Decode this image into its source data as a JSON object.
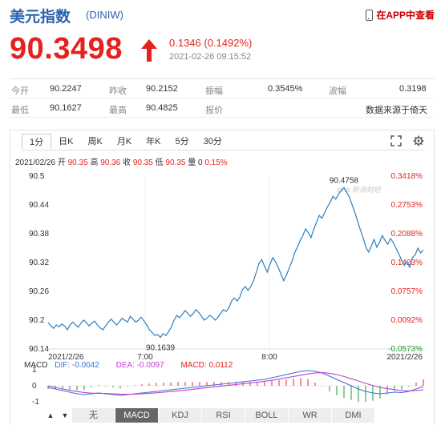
{
  "header": {
    "title": "美元指数",
    "code": "(DINIW)",
    "app_link": "在APP中查看",
    "app_icon": "phone-icon"
  },
  "quote": {
    "price": "90.3498",
    "change": "0.1346 (0.1492%)",
    "time": "2021-02-26 09:15:52",
    "direction_icon": "arrow-up-icon",
    "up_color": "#e4231f"
  },
  "stats": {
    "row1": [
      {
        "label": "今开",
        "value": "90.2247"
      },
      {
        "label": "昨收",
        "value": "90.2152"
      },
      {
        "label": "振幅",
        "value": "0.3545%"
      },
      {
        "label": "波幅",
        "value": "0.3198"
      }
    ],
    "row2": [
      {
        "label": "最低",
        "value": "90.1627"
      },
      {
        "label": "最高",
        "value": "90.4825"
      },
      {
        "label": "报价",
        "value": "数据来源于倚天"
      }
    ]
  },
  "tabs": [
    "1分",
    "日K",
    "周K",
    "月K",
    "年K",
    "5分",
    "30分"
  ],
  "active_tab": "1分",
  "tools": [
    "expand-icon",
    "gear-icon"
  ],
  "ohlc": {
    "date": "2021/02/26",
    "open_label": "开",
    "open": "90.35",
    "high_label": "高",
    "high": "90.36",
    "close_label": "收",
    "close": "90.35",
    "low_label": "低",
    "low": "90.35",
    "volume_label": "量",
    "volume": "0",
    "pct": "0.15%"
  },
  "chart_data": {
    "type": "line",
    "y_ticks": [
      "90.5",
      "90.44",
      "90.38",
      "90.32",
      "90.26",
      "90.2",
      "90.14"
    ],
    "pct_ticks": [
      "0.3418%",
      "0.2753%",
      "0.2088%",
      "0.1423%",
      "0.0757%",
      "0.0092%",
      "-0.0573%"
    ],
    "ylim": [
      90.14,
      90.5
    ],
    "x_labels": [
      "2021/2/26",
      "7:00",
      "8:00",
      "2021/2/26"
    ],
    "high_annotation": "90.4758",
    "low_annotation": "90.1639",
    "watermark": "sina 新浪财经",
    "line_color": "#2a7fc1",
    "grid": true,
    "series": [
      {
        "values": [
          90.195,
          90.188,
          90.183,
          90.19,
          90.186,
          90.192,
          90.188,
          90.18,
          90.19,
          90.196,
          90.19,
          90.185,
          90.194,
          90.2,
          90.195,
          90.188,
          90.194,
          90.198,
          90.19,
          90.184,
          90.18,
          90.188,
          90.196,
          90.202,
          90.196,
          90.19,
          90.196,
          90.204,
          90.2,
          90.196,
          90.208,
          90.202,
          90.196,
          90.2,
          90.206,
          90.198,
          90.19,
          90.18,
          90.174,
          90.168,
          90.17,
          90.164,
          90.172,
          90.168,
          90.176,
          90.186,
          90.2,
          90.21,
          90.205,
          90.212,
          90.22,
          90.214,
          90.208,
          90.214,
          90.222,
          90.216,
          90.208,
          90.2,
          90.204,
          90.21,
          90.206,
          90.2,
          90.206,
          90.214,
          90.222,
          90.218,
          90.226,
          90.24,
          90.246,
          90.24,
          90.248,
          90.264,
          90.27,
          90.262,
          90.27,
          90.282,
          90.3,
          90.318,
          90.326,
          90.312,
          90.3,
          90.316,
          90.33,
          90.322,
          90.31,
          90.296,
          90.282,
          90.294,
          90.308,
          90.322,
          90.34,
          90.352,
          90.366,
          90.376,
          90.39,
          90.382,
          90.372,
          90.39,
          90.404,
          90.418,
          90.412,
          90.424,
          90.436,
          90.446,
          90.458,
          90.452,
          90.462,
          90.47,
          90.4758,
          90.466,
          90.456,
          90.44,
          90.424,
          90.406,
          90.388,
          90.372,
          90.352,
          90.342,
          90.354,
          90.368,
          90.352,
          90.362,
          90.376,
          90.366,
          90.358,
          90.37,
          90.362,
          90.35,
          90.338,
          90.326,
          90.314,
          90.322,
          90.31,
          90.33,
          90.336,
          90.35,
          90.34,
          90.346
        ]
      }
    ],
    "macd": {
      "label": "MACD",
      "dif": "DIF: -0.0042",
      "dea": "DEA: -0.0097",
      "macd": "MACD: 0.0112",
      "y_ticks": [
        "1",
        "0",
        "-1"
      ],
      "dif_color": "#3b6fd6",
      "dea_color": "#c33fcf",
      "dif_values": [
        -0.1,
        -0.2,
        -0.3,
        -0.4,
        -0.5,
        -0.55,
        -0.5,
        -0.45,
        -0.5,
        -0.55,
        -0.6,
        -0.55,
        -0.5,
        -0.45,
        -0.4,
        -0.35,
        -0.3,
        -0.25,
        -0.2,
        -0.15,
        -0.1,
        -0.05,
        0,
        0.05,
        0.1,
        0.15,
        0.2,
        0.25,
        0.3,
        0.35,
        0.4,
        0.5,
        0.6,
        0.7,
        0.8,
        0.9,
        0.95,
        0.9,
        0.8,
        0.6,
        0.4,
        0.2,
        0,
        -0.2,
        -0.35,
        -0.45,
        -0.5,
        -0.45,
        -0.4,
        -0.42,
        -0.35,
        -0.2,
        -0.05
      ],
      "dea_values": [
        0,
        -0.1,
        -0.2,
        -0.28,
        -0.36,
        -0.42,
        -0.46,
        -0.47,
        -0.48,
        -0.5,
        -0.52,
        -0.53,
        -0.52,
        -0.5,
        -0.47,
        -0.44,
        -0.4,
        -0.36,
        -0.32,
        -0.27,
        -0.22,
        -0.17,
        -0.12,
        -0.07,
        -0.02,
        0.03,
        0.08,
        0.13,
        0.18,
        0.23,
        0.28,
        0.34,
        0.42,
        0.5,
        0.58,
        0.66,
        0.74,
        0.8,
        0.82,
        0.78,
        0.7,
        0.58,
        0.44,
        0.3,
        0.15,
        0.02,
        -0.1,
        -0.18,
        -0.24,
        -0.3,
        -0.32,
        -0.3,
        -0.25
      ]
    }
  },
  "indicators": [
    "无",
    "MACD",
    "KDJ",
    "RSI",
    "BOLL",
    "WR",
    "DMI"
  ],
  "active_indicator": "MACD",
  "nav": [
    "▲",
    "▼"
  ]
}
